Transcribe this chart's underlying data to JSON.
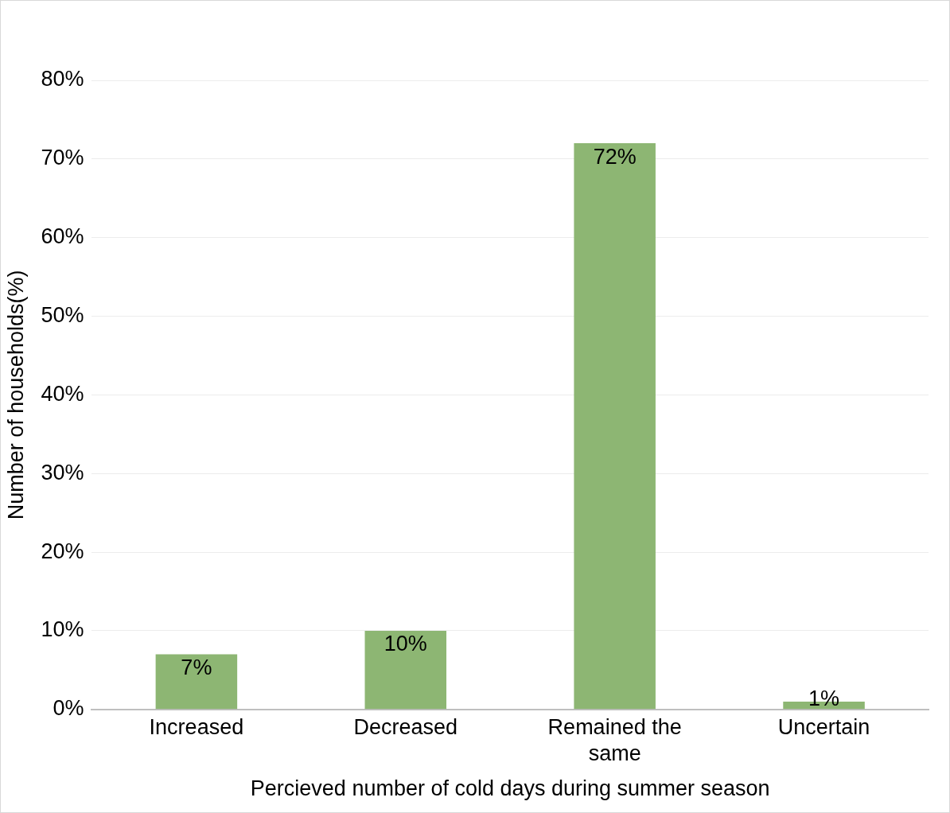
{
  "chart_data": {
    "type": "bar",
    "xlabel": "Percieved number of cold days during summer season",
    "ylabel": "Number of households(%)",
    "categories": [
      "Increased",
      "Decreased",
      "Remained the same",
      "Uncertain"
    ],
    "values": [
      7,
      10,
      72,
      1
    ],
    "value_labels": [
      "7%",
      "10%",
      "72%",
      "1%"
    ],
    "color": "#8db673",
    "ylim": [
      0,
      80
    ],
    "yticks": [
      {
        "value": 0,
        "label": "0%"
      },
      {
        "value": 10,
        "label": "10%"
      },
      {
        "value": 20,
        "label": "20%"
      },
      {
        "value": 30,
        "label": "30%"
      },
      {
        "value": 40,
        "label": "40%"
      },
      {
        "value": 50,
        "label": "50%"
      },
      {
        "value": 60,
        "label": "60%"
      },
      {
        "value": 70,
        "label": "70%"
      },
      {
        "value": 80,
        "label": "80%"
      }
    ],
    "grid": "y",
    "legend": false
  }
}
